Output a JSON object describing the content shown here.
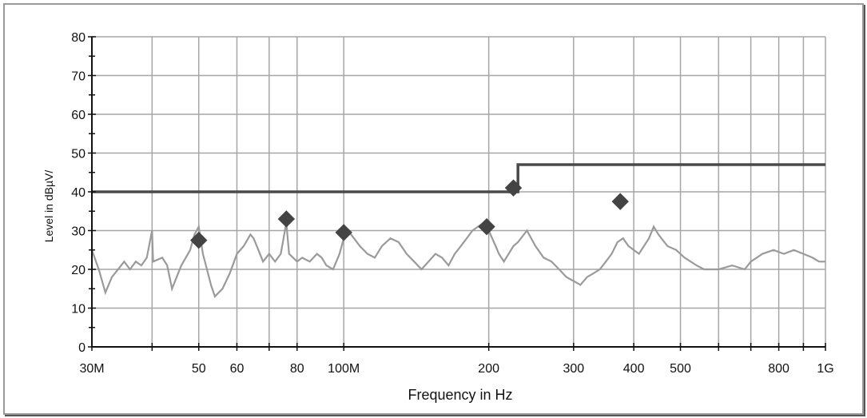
{
  "chart_data": {
    "type": "line",
    "xlabel": "Frequency in Hz",
    "ylabel": "Level in dBµV/",
    "x_scale": "log",
    "xlim_hz": [
      30000000,
      1000000000
    ],
    "ylim": [
      0,
      80
    ],
    "grid": true,
    "y_ticks": [
      0,
      10,
      20,
      30,
      40,
      50,
      60,
      70,
      80
    ],
    "x_ticks": [
      {
        "hz": 30000000,
        "label": "30M"
      },
      {
        "hz": 40000000,
        "label": ""
      },
      {
        "hz": 50000000,
        "label": "50"
      },
      {
        "hz": 60000000,
        "label": "60"
      },
      {
        "hz": 70000000,
        "label": ""
      },
      {
        "hz": 80000000,
        "label": "80"
      },
      {
        "hz": 100000000,
        "label": "100M"
      },
      {
        "hz": 200000000,
        "label": "200"
      },
      {
        "hz": 300000000,
        "label": "300"
      },
      {
        "hz": 400000000,
        "label": "400"
      },
      {
        "hz": 500000000,
        "label": "500"
      },
      {
        "hz": 600000000,
        "label": ""
      },
      {
        "hz": 700000000,
        "label": ""
      },
      {
        "hz": 800000000,
        "label": "800"
      },
      {
        "hz": 900000000,
        "label": ""
      },
      {
        "hz": 1000000000,
        "label": "1G"
      }
    ],
    "series": [
      {
        "kind": "limit",
        "color": "#4a4a4a",
        "points": [
          [
            30000000,
            40
          ],
          [
            230000000,
            40
          ],
          [
            230000000,
            47
          ],
          [
            1000000000,
            47
          ]
        ]
      },
      {
        "kind": "measurement",
        "color": "#9a9a9a",
        "points": [
          [
            30000000,
            25
          ],
          [
            31000000,
            20
          ],
          [
            32000000,
            14
          ],
          [
            33000000,
            18
          ],
          [
            34000000,
            20
          ],
          [
            35000000,
            22
          ],
          [
            36000000,
            20
          ],
          [
            37000000,
            22
          ],
          [
            38000000,
            21
          ],
          [
            39000000,
            23
          ],
          [
            40000000,
            30
          ],
          [
            40200000,
            22
          ],
          [
            42000000,
            23
          ],
          [
            43000000,
            21
          ],
          [
            44000000,
            15
          ],
          [
            45000000,
            18
          ],
          [
            46000000,
            21
          ],
          [
            47000000,
            23
          ],
          [
            48000000,
            25
          ],
          [
            49000000,
            29
          ],
          [
            50000000,
            31
          ],
          [
            51000000,
            24
          ],
          [
            52000000,
            20
          ],
          [
            53000000,
            16
          ],
          [
            54000000,
            13
          ],
          [
            56000000,
            15
          ],
          [
            58000000,
            19
          ],
          [
            60000000,
            24
          ],
          [
            62000000,
            26
          ],
          [
            64000000,
            29
          ],
          [
            65000000,
            28
          ],
          [
            66000000,
            26
          ],
          [
            68000000,
            22
          ],
          [
            70000000,
            24
          ],
          [
            72000000,
            22
          ],
          [
            74000000,
            24
          ],
          [
            76000000,
            32
          ],
          [
            77000000,
            24
          ],
          [
            80000000,
            22
          ],
          [
            82000000,
            23
          ],
          [
            85000000,
            22
          ],
          [
            88000000,
            24
          ],
          [
            90000000,
            23
          ],
          [
            92000000,
            21
          ],
          [
            95000000,
            20
          ],
          [
            98000000,
            24
          ],
          [
            100000000,
            28
          ],
          [
            102000000,
            30
          ],
          [
            105000000,
            28
          ],
          [
            108000000,
            26
          ],
          [
            112000000,
            24
          ],
          [
            116000000,
            23
          ],
          [
            120000000,
            26
          ],
          [
            125000000,
            28
          ],
          [
            130000000,
            27
          ],
          [
            135000000,
            24
          ],
          [
            140000000,
            22
          ],
          [
            145000000,
            20
          ],
          [
            150000000,
            22
          ],
          [
            155000000,
            24
          ],
          [
            160000000,
            23
          ],
          [
            165000000,
            21
          ],
          [
            170000000,
            24
          ],
          [
            175000000,
            26
          ],
          [
            180000000,
            28
          ],
          [
            185000000,
            30
          ],
          [
            190000000,
            31
          ],
          [
            195000000,
            32
          ],
          [
            200000000,
            30
          ],
          [
            205000000,
            27
          ],
          [
            210000000,
            24
          ],
          [
            215000000,
            22
          ],
          [
            220000000,
            24
          ],
          [
            225000000,
            26
          ],
          [
            230000000,
            27
          ],
          [
            240000000,
            30
          ],
          [
            250000000,
            26
          ],
          [
            260000000,
            23
          ],
          [
            270000000,
            22
          ],
          [
            280000000,
            20
          ],
          [
            290000000,
            18
          ],
          [
            300000000,
            17
          ],
          [
            310000000,
            16
          ],
          [
            320000000,
            18
          ],
          [
            330000000,
            19
          ],
          [
            340000000,
            20
          ],
          [
            350000000,
            22
          ],
          [
            360000000,
            24
          ],
          [
            370000000,
            27
          ],
          [
            380000000,
            28
          ],
          [
            390000000,
            26
          ],
          [
            400000000,
            25
          ],
          [
            410000000,
            24
          ],
          [
            420000000,
            26
          ],
          [
            430000000,
            28
          ],
          [
            440000000,
            31
          ],
          [
            450000000,
            29
          ],
          [
            470000000,
            26
          ],
          [
            490000000,
            25
          ],
          [
            510000000,
            23
          ],
          [
            540000000,
            21
          ],
          [
            560000000,
            20
          ],
          [
            600000000,
            20
          ],
          [
            640000000,
            21
          ],
          [
            680000000,
            20
          ],
          [
            700000000,
            22
          ],
          [
            740000000,
            24
          ],
          [
            780000000,
            25
          ],
          [
            820000000,
            24
          ],
          [
            860000000,
            25
          ],
          [
            900000000,
            24
          ],
          [
            940000000,
            23
          ],
          [
            970000000,
            22
          ],
          [
            1000000000,
            22
          ]
        ]
      }
    ],
    "markers": [
      {
        "hz": 50000000,
        "level": 27.5
      },
      {
        "hz": 76000000,
        "level": 33
      },
      {
        "hz": 100000000,
        "level": 29.5
      },
      {
        "hz": 198000000,
        "level": 31
      },
      {
        "hz": 225000000,
        "level": 41
      },
      {
        "hz": 375000000,
        "level": 37.5
      }
    ],
    "marker_color": "#444444"
  }
}
